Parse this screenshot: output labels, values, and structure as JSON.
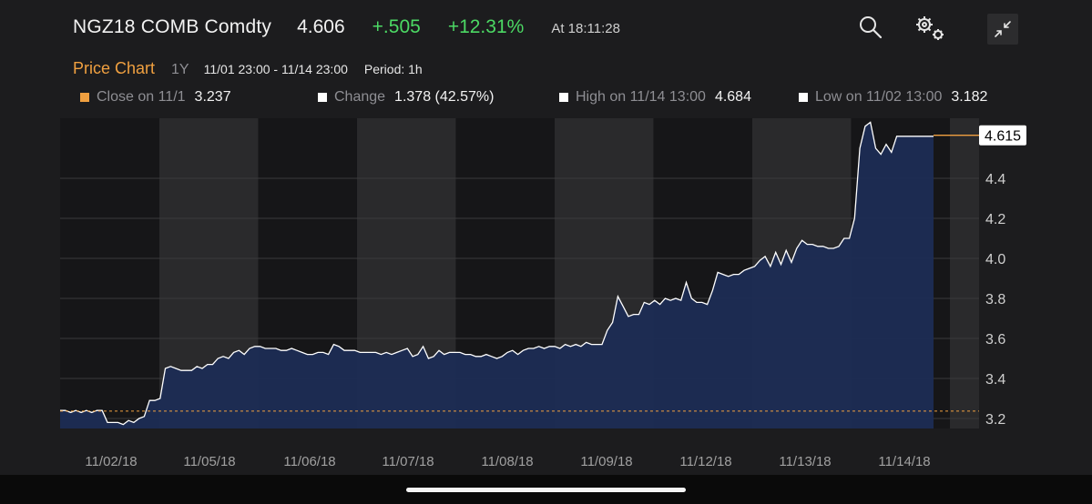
{
  "header": {
    "ticker": "NGZ18 COMB Comdty",
    "last_price": "4.606",
    "change": "+.505",
    "change_pct": "+12.31%",
    "time": "At 18:11:28"
  },
  "icons": {
    "search": "search-icon",
    "settings": "gear-icon",
    "collapse": "collapse-icon"
  },
  "subheader": {
    "title": "Price Chart",
    "range": "1Y",
    "dates": "11/01 23:00 - 11/14 23:00",
    "period": "Period: 1h"
  },
  "stats": {
    "close": {
      "label": "Close on 11/1",
      "value": "3.237",
      "color": "#f0a040"
    },
    "change": {
      "label": "Change",
      "value": "1.378 (42.57%)"
    },
    "high": {
      "label": "High on 11/14 13:00",
      "value": "4.684"
    },
    "low": {
      "label": "Low on 11/02 13:00",
      "value": "3.182"
    }
  },
  "colors": {
    "background": "#1c1c1e",
    "band_light": "#2a2a2c",
    "band_dark": "#161618",
    "area_fill": "#1c2c54",
    "line": "#ffffff",
    "accent": "#f0a040",
    "positive": "#4cd964"
  },
  "chart_data": {
    "type": "area",
    "x_labels": [
      "11/02/18",
      "11/05/18",
      "11/06/18",
      "11/07/18",
      "11/08/18",
      "11/09/18",
      "11/12/18",
      "11/13/18",
      "11/14/18"
    ],
    "y_ticks": [
      "3.2",
      "3.4",
      "3.6",
      "3.8",
      "4.0",
      "4.2",
      "4.4"
    ],
    "ylim": [
      3.15,
      4.7
    ],
    "reference_value": 3.237,
    "last_value": 4.615,
    "last_label": "4.615",
    "grid": true,
    "values": [
      3.24,
      3.24,
      3.23,
      3.24,
      3.23,
      3.24,
      3.23,
      3.24,
      3.24,
      3.18,
      3.18,
      3.18,
      3.17,
      3.19,
      3.18,
      3.2,
      3.21,
      3.29,
      3.29,
      3.3,
      3.45,
      3.46,
      3.45,
      3.44,
      3.44,
      3.44,
      3.46,
      3.45,
      3.47,
      3.47,
      3.5,
      3.51,
      3.5,
      3.53,
      3.54,
      3.52,
      3.55,
      3.56,
      3.56,
      3.55,
      3.55,
      3.55,
      3.54,
      3.54,
      3.55,
      3.54,
      3.53,
      3.52,
      3.52,
      3.53,
      3.53,
      3.52,
      3.57,
      3.56,
      3.54,
      3.54,
      3.54,
      3.53,
      3.53,
      3.53,
      3.53,
      3.52,
      3.53,
      3.52,
      3.53,
      3.54,
      3.55,
      3.51,
      3.52,
      3.56,
      3.5,
      3.51,
      3.54,
      3.52,
      3.53,
      3.53,
      3.53,
      3.52,
      3.52,
      3.51,
      3.51,
      3.52,
      3.51,
      3.5,
      3.51,
      3.53,
      3.54,
      3.52,
      3.54,
      3.55,
      3.55,
      3.56,
      3.55,
      3.56,
      3.56,
      3.55,
      3.57,
      3.56,
      3.57,
      3.56,
      3.58,
      3.57,
      3.57,
      3.57,
      3.64,
      3.68,
      3.81,
      3.76,
      3.71,
      3.72,
      3.72,
      3.78,
      3.77,
      3.79,
      3.77,
      3.8,
      3.79,
      3.8,
      3.79,
      3.88,
      3.8,
      3.78,
      3.78,
      3.77,
      3.84,
      3.93,
      3.92,
      3.91,
      3.92,
      3.92,
      3.94,
      3.95,
      3.96,
      3.99,
      4.01,
      3.96,
      4.03,
      3.97,
      4.04,
      3.98,
      4.05,
      4.09,
      4.07,
      4.07,
      4.06,
      4.06,
      4.05,
      4.05,
      4.06,
      4.1,
      4.1,
      4.2,
      4.55,
      4.66,
      4.68,
      4.55,
      4.52,
      4.57,
      4.53,
      4.61,
      4.61,
      4.61,
      4.61,
      4.61,
      4.61,
      4.61,
      4.61
    ]
  }
}
